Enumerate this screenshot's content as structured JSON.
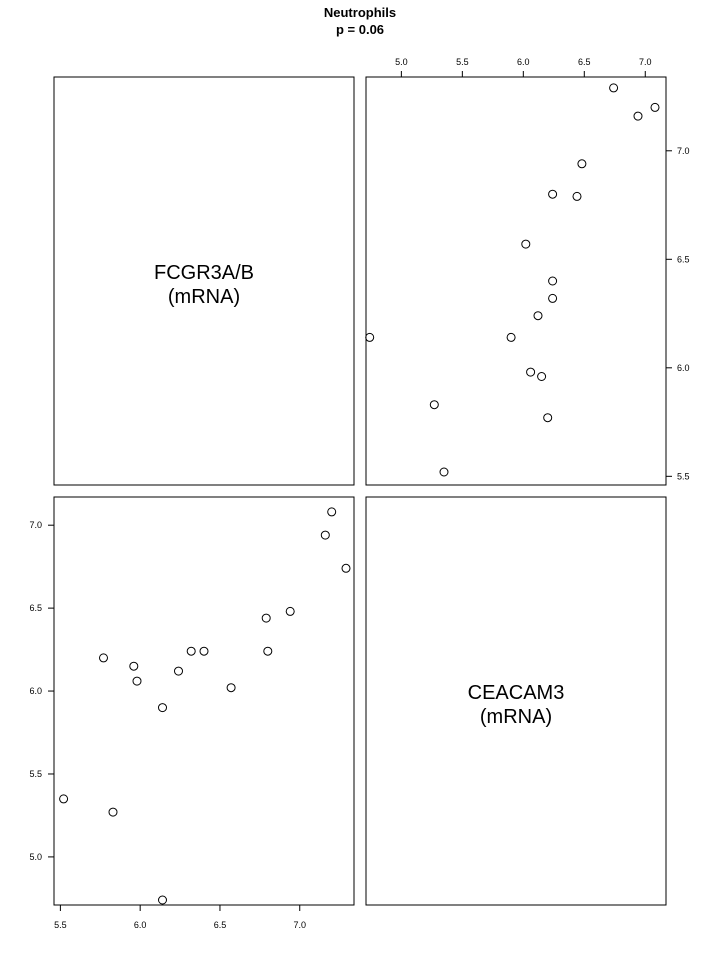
{
  "chart_data": {
    "type": "scatter",
    "title": "Neutrophils",
    "subtitle": "p = 0.06",
    "variables": [
      {
        "name": "FCGR3A/B",
        "unit": "(mRNA)"
      },
      {
        "name": "CEACAM3",
        "unit": "(mRNA)"
      }
    ],
    "points": [
      {
        "fcgr3ab": 5.52,
        "ceacam3": 5.35
      },
      {
        "fcgr3ab": 5.77,
        "ceacam3": 6.2
      },
      {
        "fcgr3ab": 5.83,
        "ceacam3": 5.27
      },
      {
        "fcgr3ab": 5.96,
        "ceacam3": 6.15
      },
      {
        "fcgr3ab": 5.98,
        "ceacam3": 6.06
      },
      {
        "fcgr3ab": 6.14,
        "ceacam3": 5.9
      },
      {
        "fcgr3ab": 6.14,
        "ceacam3": 4.74
      },
      {
        "fcgr3ab": 6.24,
        "ceacam3": 6.12
      },
      {
        "fcgr3ab": 6.32,
        "ceacam3": 6.24
      },
      {
        "fcgr3ab": 6.4,
        "ceacam3": 6.24
      },
      {
        "fcgr3ab": 6.57,
        "ceacam3": 6.02
      },
      {
        "fcgr3ab": 6.79,
        "ceacam3": 6.44
      },
      {
        "fcgr3ab": 6.8,
        "ceacam3": 6.24
      },
      {
        "fcgr3ab": 6.94,
        "ceacam3": 6.48
      },
      {
        "fcgr3ab": 7.16,
        "ceacam3": 6.94
      },
      {
        "fcgr3ab": 7.2,
        "ceacam3": 7.08
      },
      {
        "fcgr3ab": 7.29,
        "ceacam3": 6.74
      }
    ],
    "fcgr3ab_axis": {
      "ticks": [
        5.5,
        6.0,
        6.5,
        7.0
      ],
      "tick_labels": [
        "5.5",
        "6.0",
        "6.5",
        "7.0"
      ],
      "range": [
        5.46,
        7.34
      ]
    },
    "ceacam3_axis": {
      "ticks": [
        5.0,
        5.5,
        6.0,
        6.5,
        7.0
      ],
      "tick_labels": [
        "5.0",
        "5.5",
        "6.0",
        "6.5",
        "7.0"
      ],
      "range": [
        4.71,
        7.17
      ]
    },
    "grid": false,
    "legend": "none"
  }
}
